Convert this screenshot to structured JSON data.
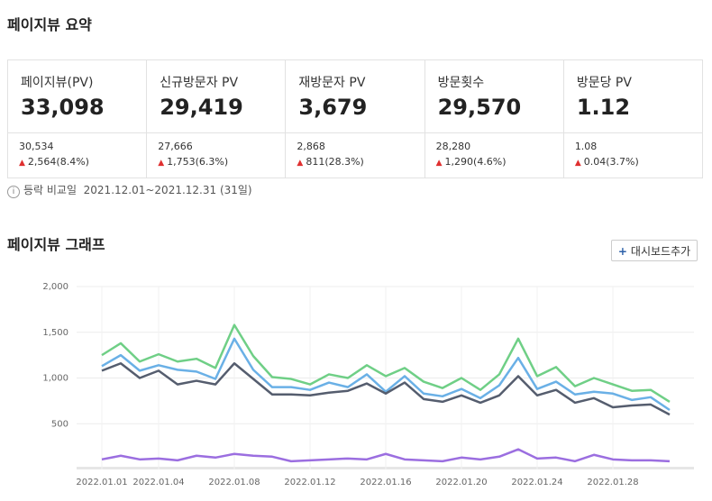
{
  "header": {
    "title": "페이지뷰 요약"
  },
  "summary": [
    {
      "label": "페이지뷰(PV)",
      "value": "33,098",
      "previous": "30,534",
      "change": "2,564(8.4%)"
    },
    {
      "label": "신규방문자 PV",
      "value": "29,419",
      "previous": "27,666",
      "change": "1,753(6.3%)"
    },
    {
      "label": "재방문자 PV",
      "value": "3,679",
      "previous": "2,868",
      "change": "811(28.3%)"
    },
    {
      "label": "방문횟수",
      "value": "29,570",
      "previous": "28,280",
      "change": "1,290(4.6%)"
    },
    {
      "label": "방문당 PV",
      "value": "1.12",
      "previous": "1.08",
      "change": "0.04(3.7%)"
    }
  ],
  "note": {
    "label": "등락 비교일",
    "period": "2021.12.01~2021.12.31 (31일)"
  },
  "graph_section": {
    "title": "페이지뷰 그래프",
    "button": "대시보드추가"
  },
  "chart_data": {
    "type": "line",
    "categories": [
      "2022.01.01",
      null,
      null,
      "2022.01.04",
      null,
      null,
      null,
      "2022.01.08",
      null,
      null,
      null,
      "2022.01.12",
      null,
      null,
      null,
      "2022.01.16",
      null,
      null,
      null,
      "2022.01.20",
      null,
      null,
      null,
      "2022.01.24",
      null,
      null,
      null,
      "2022.01.28",
      null,
      null,
      null
    ],
    "series": [
      {
        "color": "#6fcf86",
        "values": [
          1250,
          1380,
          1180,
          1260,
          1180,
          1210,
          1110,
          1580,
          1240,
          1010,
          990,
          930,
          1040,
          1000,
          1140,
          1020,
          1110,
          960,
          890,
          1000,
          870,
          1040,
          1430,
          1020,
          1120,
          910,
          1000,
          930,
          860,
          870,
          740
        ]
      },
      {
        "color": "#6ab0e6",
        "values": [
          1130,
          1250,
          1080,
          1140,
          1090,
          1070,
          990,
          1430,
          1090,
          900,
          900,
          870,
          950,
          900,
          1040,
          850,
          1020,
          830,
          800,
          880,
          780,
          920,
          1220,
          880,
          960,
          820,
          850,
          830,
          760,
          790,
          650
        ]
      },
      {
        "color": "#555d6e",
        "values": [
          1080,
          1160,
          1000,
          1080,
          930,
          970,
          930,
          1160,
          990,
          820,
          820,
          810,
          840,
          860,
          940,
          830,
          950,
          770,
          740,
          810,
          730,
          810,
          1020,
          810,
          870,
          730,
          780,
          680,
          700,
          710,
          600
        ]
      },
      {
        "color": "#9b6ee0",
        "values": [
          110,
          150,
          110,
          120,
          100,
          150,
          130,
          170,
          150,
          140,
          90,
          100,
          110,
          120,
          110,
          170,
          110,
          100,
          90,
          130,
          110,
          140,
          220,
          120,
          130,
          90,
          160,
          110,
          100,
          100,
          90
        ]
      }
    ],
    "ylim": [
      0,
      2000
    ],
    "yticks": [
      500,
      {
        "value": 1000,
        "label": "1,000"
      },
      {
        "value": 1500,
        "label": "1,500"
      },
      {
        "value": 2000,
        "label": "2,000"
      }
    ],
    "grid": true
  }
}
